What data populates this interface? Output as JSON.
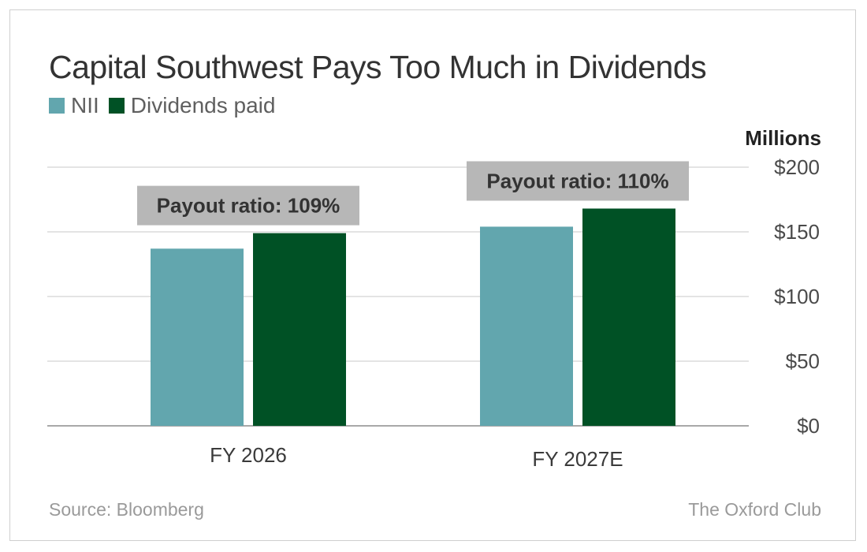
{
  "chart_data": {
    "type": "bar",
    "title": "Capital Southwest Pays Too Much in Dividends",
    "unit_label": "Millions",
    "categories": [
      "FY 2026",
      "FY 2027E"
    ],
    "series": [
      {
        "name": "NII",
        "color": "#62a6ae",
        "values": [
          137,
          154
        ]
      },
      {
        "name": "Dividends paid",
        "color": "#005125",
        "values": [
          149,
          168
        ]
      }
    ],
    "annotations": [
      "Payout ratio: 109%",
      "Payout ratio: 110%"
    ],
    "ylim": [
      0,
      200
    ],
    "yticks": [
      0,
      50,
      100,
      150,
      200
    ],
    "ytick_labels": [
      "$0",
      "$50",
      "$100",
      "$150",
      "$200"
    ],
    "y_axis_position": "right",
    "grid": true,
    "legend_position": "top-left"
  },
  "footer": {
    "source": "Source: Bloomberg",
    "brand": "The Oxford Club"
  }
}
